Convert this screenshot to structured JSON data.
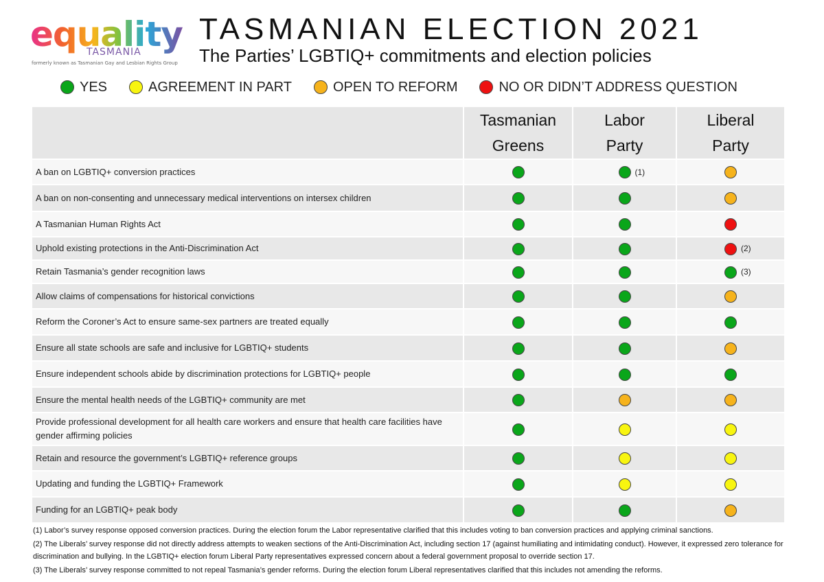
{
  "logo": {
    "word": "equality",
    "sub": "TASMANIA",
    "formerly": "formerly known as Tasmanian Gay and Lesbian Rights Group"
  },
  "header": {
    "title": "TASMANIAN ELECTION 2021",
    "subtitle": "The Parties’ LGBTIQ+ commitments and election policies"
  },
  "colors": {
    "yes": "#0aa61a",
    "part": "#f8f510",
    "open": "#f6b31c",
    "no": "#ee1111"
  },
  "legend": [
    {
      "status": "green",
      "label": "YES"
    },
    {
      "status": "yellow",
      "label": "AGREEMENT IN PART"
    },
    {
      "status": "orange",
      "label": "OPEN TO REFORM"
    },
    {
      "status": "red",
      "label": "NO OR DIDN’T ADDRESS QUESTION"
    }
  ],
  "table": {
    "columns": [
      {
        "line1": "Tasmanian",
        "line2": "Greens"
      },
      {
        "line1": "Labor",
        "line2": "Party"
      },
      {
        "line1": "Liberal",
        "line2": "Party"
      }
    ],
    "rows": [
      {
        "criterion": "A ban on LGBTIQ+ conversion practices",
        "cells": [
          {
            "status": "green"
          },
          {
            "status": "green",
            "note": "(1)"
          },
          {
            "status": "orange"
          }
        ]
      },
      {
        "criterion": "A ban on non-consenting and unnecessary medical interventions on intersex children",
        "cells": [
          {
            "status": "green"
          },
          {
            "status": "green"
          },
          {
            "status": "orange"
          }
        ]
      },
      {
        "criterion": "A Tasmanian Human Rights Act",
        "cells": [
          {
            "status": "green"
          },
          {
            "status": "green"
          },
          {
            "status": "red"
          }
        ]
      },
      {
        "criterion": "Uphold existing protections in the Anti-Discrimination Act",
        "cells": [
          {
            "status": "green"
          },
          {
            "status": "green"
          },
          {
            "status": "red",
            "note": "(2)"
          }
        ]
      },
      {
        "criterion": "Retain Tasmania’s gender recognition laws",
        "cells": [
          {
            "status": "green"
          },
          {
            "status": "green"
          },
          {
            "status": "green",
            "note": "(3)"
          }
        ]
      },
      {
        "criterion": "Allow claims of compensations for historical convictions",
        "cells": [
          {
            "status": "green"
          },
          {
            "status": "green"
          },
          {
            "status": "orange"
          }
        ]
      },
      {
        "criterion": "Reform the Coroner’s Act to ensure same-sex partners are treated equally",
        "cells": [
          {
            "status": "green"
          },
          {
            "status": "green"
          },
          {
            "status": "green"
          }
        ]
      },
      {
        "criterion": "Ensure all state schools are safe and inclusive for LGBTIQ+ students",
        "cells": [
          {
            "status": "green"
          },
          {
            "status": "green"
          },
          {
            "status": "orange"
          }
        ]
      },
      {
        "criterion": "Ensure independent schools abide by discrimination protections for LGBTIQ+ people",
        "cells": [
          {
            "status": "green"
          },
          {
            "status": "green"
          },
          {
            "status": "green"
          }
        ]
      },
      {
        "criterion": "Ensure the mental health needs of the LGBTIQ+ community are met",
        "cells": [
          {
            "status": "green"
          },
          {
            "status": "orange"
          },
          {
            "status": "orange"
          }
        ]
      },
      {
        "criterion": "Provide professional development for all health care workers and ensure that health care facilities have gender affirming policies",
        "cells": [
          {
            "status": "green"
          },
          {
            "status": "yellow"
          },
          {
            "status": "yellow"
          }
        ]
      },
      {
        "criterion": "Retain and resource the government’s LGBTIQ+ reference groups",
        "cells": [
          {
            "status": "green"
          },
          {
            "status": "yellow"
          },
          {
            "status": "yellow"
          }
        ]
      },
      {
        "criterion": "Updating and funding the LGBTIQ+ Framework",
        "cells": [
          {
            "status": "green"
          },
          {
            "status": "yellow"
          },
          {
            "status": "yellow"
          }
        ]
      },
      {
        "criterion": "Funding for an LGBTIQ+ peak body",
        "cells": [
          {
            "status": "green"
          },
          {
            "status": "green"
          },
          {
            "status": "orange"
          }
        ]
      }
    ]
  },
  "footnotes": [
    "(1) Labor’s survey response opposed conversion practices. During the election forum the Labor representative clarified that this includes voting to ban conversion practices and applying criminal sanctions.",
    "(2) The Liberals’ survey response did not directly address attempts to weaken sections of the Anti-Discrimination Act, including section 17 (against humiliating and intimidating conduct). However, it expressed zero tolerance for discrimination and bullying. In the LGBTIQ+ election forum Liberal Party representatives expressed concern about a federal government proposal to override section 17.",
    "(3) The Liberals’ survey response committed to not repeal Tasmania’s gender reforms. During the election forum Liberal representatives clarified that this includes not amending the reforms."
  ]
}
